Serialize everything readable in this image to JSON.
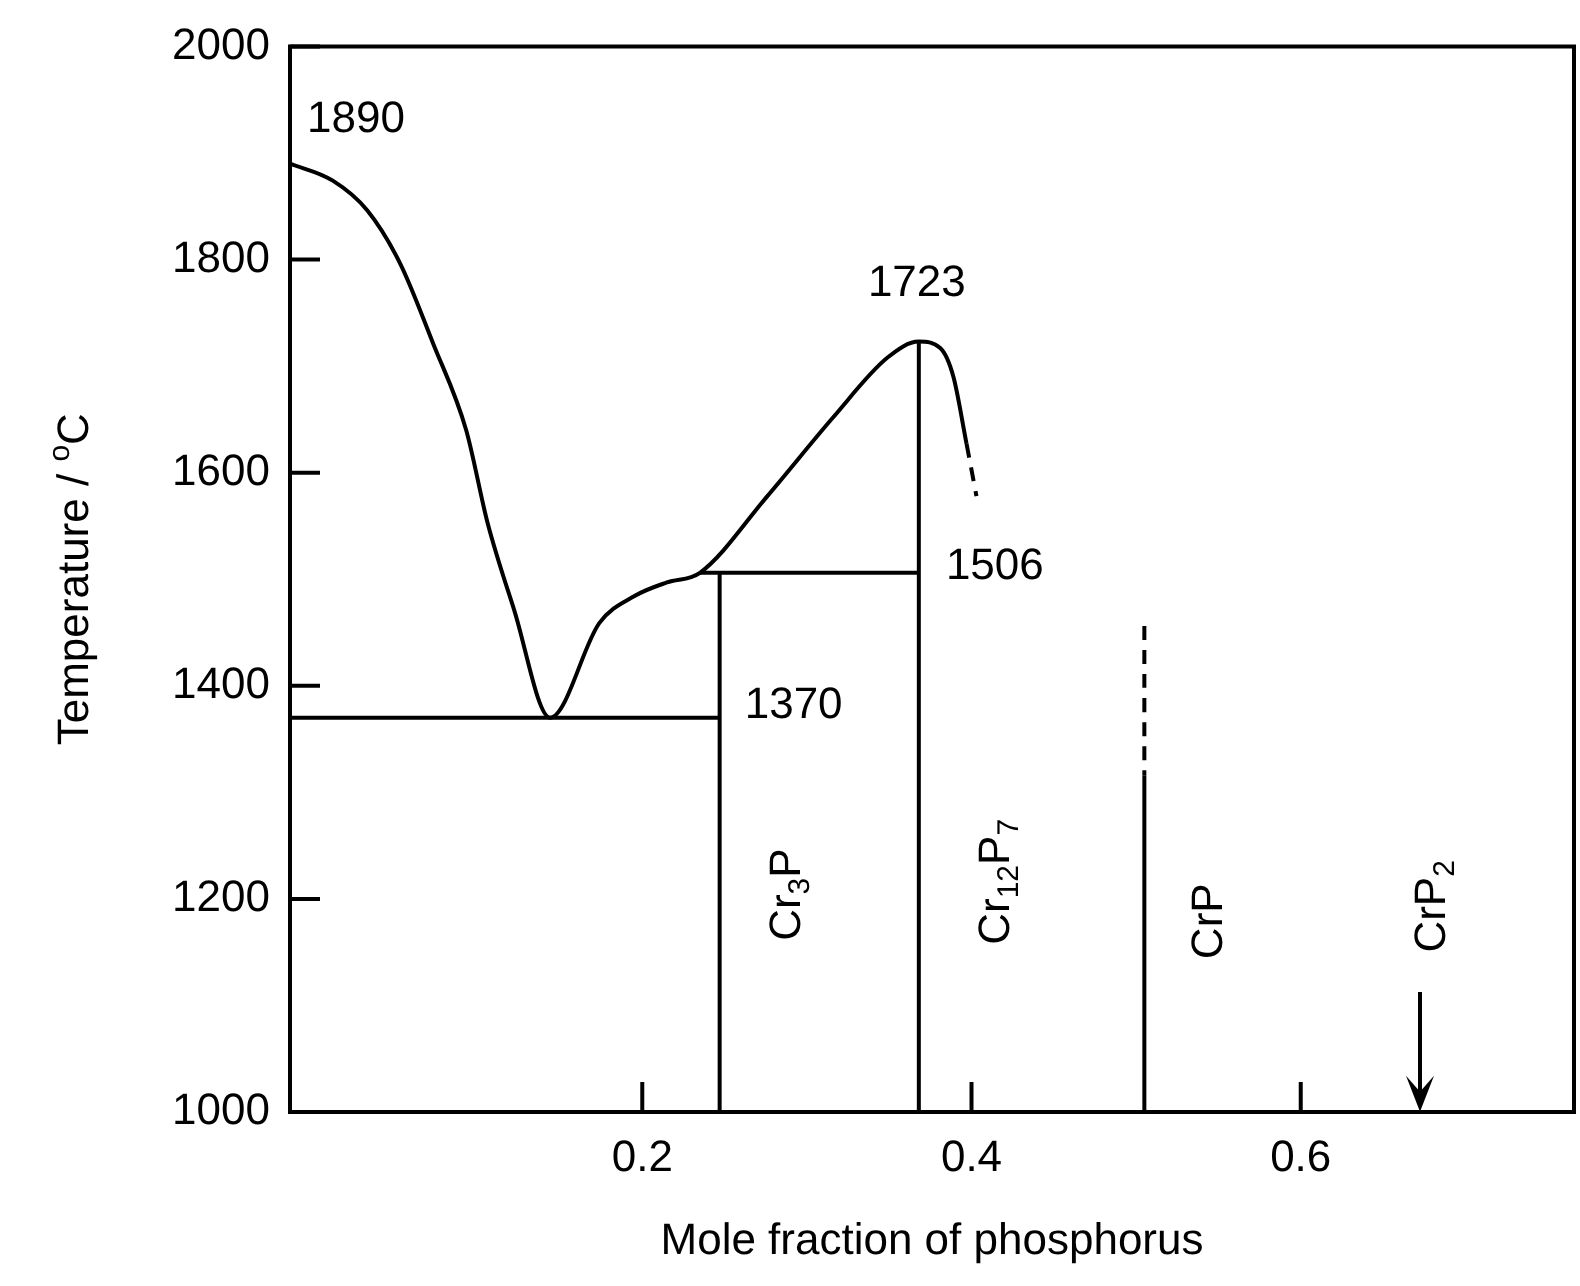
{
  "chart_data": {
    "type": "line",
    "xlabel": "Mole fraction of phosphorus",
    "ylabel": "Temperature / $^{o}$C",
    "xlim": [
      -0.014,
      0.766
    ],
    "ylim": [
      1000,
      2000
    ],
    "xticks": [
      0.2,
      0.4,
      0.6
    ],
    "yticks": [
      1000,
      1200,
      1400,
      1600,
      1800,
      2000
    ],
    "grid": false,
    "legend": false,
    "marker": "none",
    "line_style": "solid",
    "series": [
      {
        "color": "#000000",
        "x": [
          -0.014,
          0.012,
          0.033,
          0.053,
          0.073,
          0.093,
          0.106,
          0.122,
          0.144,
          0.174,
          0.195,
          0.215,
          0.235,
          0.276,
          0.316,
          0.349,
          0.368,
          0.381,
          0.389,
          0.397
        ],
        "values": [
          1890,
          1874,
          1846,
          1796,
          1721,
          1640,
          1553,
          1472,
          1370,
          1459,
          1484,
          1497,
          1506,
          1578,
          1652,
          1708,
          1723,
          1717,
          1690,
          1627
        ]
      },
      {
        "color": "#000000",
        "line_style": "dashed",
        "x": [
          0.397,
          0.403
        ],
        "values": [
          1627,
          1578
        ]
      },
      {
        "color": "#000000",
        "x": [
          -0.014,
          0.247
        ],
        "values": [
          1370,
          1370
        ]
      },
      {
        "color": "#000000",
        "x": [
          0.235,
          0.368
        ],
        "values": [
          1506,
          1506
        ]
      },
      {
        "color": "#000000",
        "x": [
          0.247,
          0.247
        ],
        "values": [
          1506,
          1000
        ]
      },
      {
        "color": "#000000",
        "x": [
          0.368,
          0.368
        ],
        "values": [
          1723,
          1000
        ]
      },
      {
        "color": "#000000",
        "x": [
          0.505,
          0.505
        ],
        "values": [
          1316,
          1000
        ]
      },
      {
        "color": "#000000",
        "line_style": "dashed",
        "x": [
          0.505,
          0.505
        ],
        "values": [
          1456,
          1316
        ]
      }
    ],
    "annotations": [
      {
        "text": "1890",
        "x": -0.014,
        "y": 1890
      },
      {
        "text": "1723",
        "x": 0.368,
        "y": 1723
      },
      {
        "text": "1506",
        "x": 0.368,
        "y": 1506
      },
      {
        "text": "1370",
        "x": 0.247,
        "y": 1370
      },
      {
        "text": "Cr$_{3}$P",
        "x": 0.247,
        "y": 1204
      },
      {
        "text": "Cr$_{12}$P$_{7}$",
        "x": 0.368,
        "y": 1216
      },
      {
        "text": "CrP",
        "x": 0.505,
        "y": 1179
      },
      "CrP$_{2}$"
    ]
  }
}
